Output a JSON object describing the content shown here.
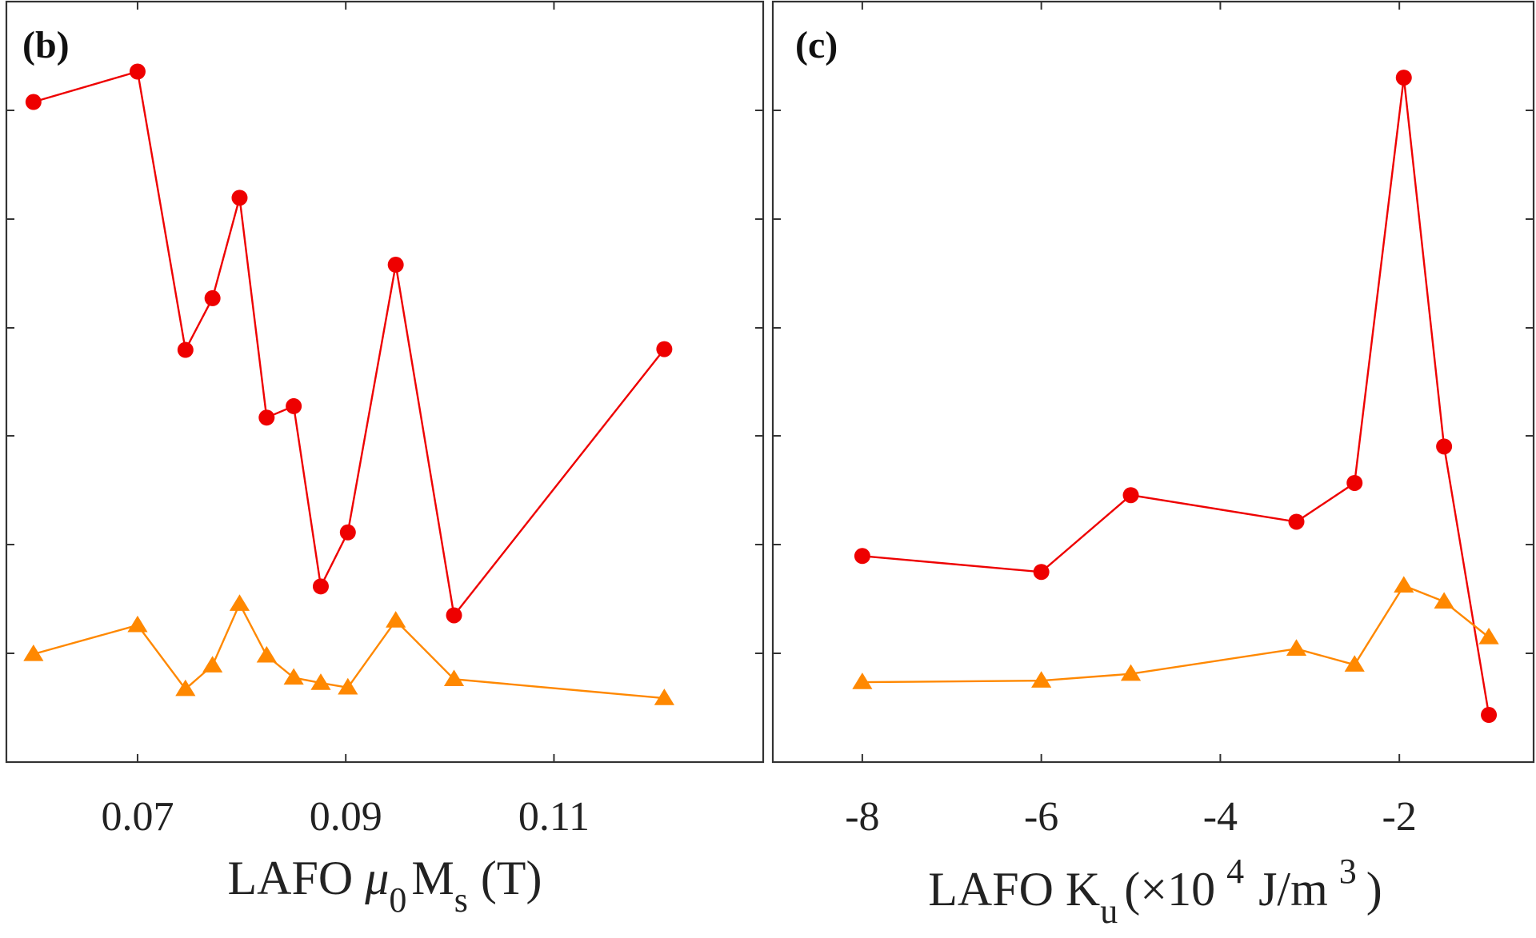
{
  "chart_data": [
    {
      "type": "line",
      "panel_label": "(b)",
      "xlabel": {
        "prefix": "LAFO ",
        "mu": "μ",
        "mu_sub": "0",
        "m": "M",
        "m_sub": "s",
        "suffix": "(T)"
      },
      "ylabel": "",
      "xlim": [
        0.0574,
        0.1301
      ],
      "ylim": [
        0,
        1
      ],
      "xticks": [
        0.07,
        0.09,
        0.11
      ],
      "xtick_labels": [
        "0.07",
        "0.09",
        "0.11"
      ],
      "yticks": [
        0.143,
        0.286,
        0.429,
        0.571,
        0.714,
        0.857
      ],
      "grid": false,
      "series": [
        {
          "marker": "circle",
          "color": "#ee0000",
          "x": [
            0.06,
            0.07,
            0.0746,
            0.0772,
            0.0798,
            0.0824,
            0.085,
            0.0876,
            0.0902,
            0.0948,
            0.1004,
            0.1206
          ],
          "y": [
            0.868,
            0.908,
            0.542,
            0.61,
            0.742,
            0.453,
            0.468,
            0.231,
            0.302,
            0.654,
            0.193,
            0.543
          ]
        },
        {
          "marker": "triangle",
          "color": "#ff8800",
          "x": [
            0.06,
            0.07,
            0.0746,
            0.0772,
            0.0798,
            0.0824,
            0.085,
            0.0876,
            0.0902,
            0.0948,
            0.1004,
            0.1206
          ],
          "y": [
            0.142,
            0.18,
            0.096,
            0.127,
            0.208,
            0.14,
            0.111,
            0.104,
            0.098,
            0.186,
            0.109,
            0.084
          ]
        }
      ]
    },
    {
      "type": "line",
      "panel_label": "(c)",
      "xlabel": {
        "prefix": "LAFO K",
        "k_sub": "u",
        "paren_open": "(×10",
        "exp1": "4",
        "unit": "J/m",
        "exp2": "3",
        "paren_close": ")"
      },
      "ylabel": "",
      "xlim": [
        -9.0,
        -0.5
      ],
      "ylim": [
        0,
        1
      ],
      "xticks": [
        -8,
        -6,
        -4,
        -2
      ],
      "xtick_labels": [
        "-8",
        "-6",
        "-4",
        "-2"
      ],
      "yticks": [
        0.143,
        0.286,
        0.429,
        0.571,
        0.714,
        0.857
      ],
      "grid": false,
      "series": [
        {
          "marker": "circle",
          "color": "#ee0000",
          "x": [
            -8.0,
            -6.0,
            -5.0,
            -3.15,
            -2.5,
            -1.95,
            -1.5,
            -1.0
          ],
          "y": [
            0.271,
            0.25,
            0.351,
            0.316,
            0.367,
            0.9,
            0.415,
            0.062
          ]
        },
        {
          "marker": "triangle",
          "color": "#ff8800",
          "x": [
            -8.0,
            -6.0,
            -5.0,
            -3.15,
            -2.5,
            -1.95,
            -1.5,
            -1.0
          ],
          "y": [
            0.105,
            0.107,
            0.116,
            0.149,
            0.128,
            0.232,
            0.211,
            0.164
          ]
        }
      ]
    }
  ]
}
